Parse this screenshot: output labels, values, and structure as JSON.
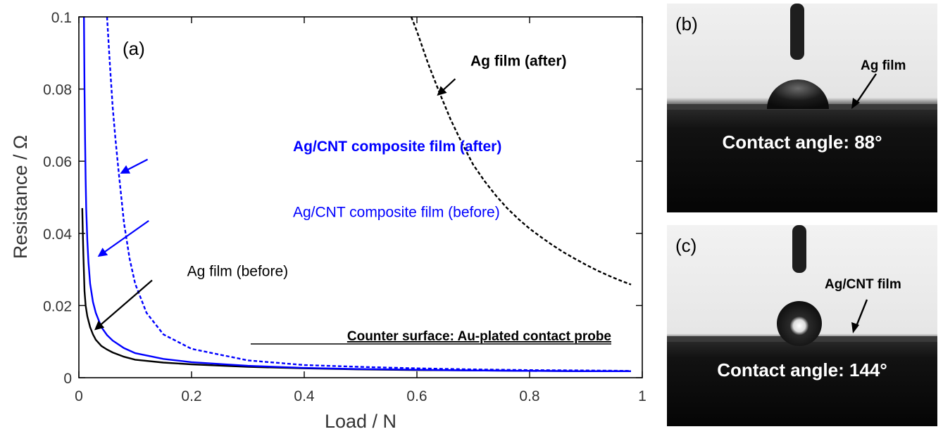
{
  "chart_data": {
    "type": "line",
    "panel_label": "(a)",
    "xlabel": "Load / N",
    "ylabel": "Resistance / Ω",
    "xlim": [
      0,
      1
    ],
    "ylim": [
      0,
      0.1
    ],
    "xticks": [
      0,
      0.2,
      0.4,
      0.6,
      0.8,
      1
    ],
    "xtick_labels": [
      "0",
      "0.2",
      "0.4",
      "0.6",
      "0.8",
      "1"
    ],
    "yticks": [
      0,
      0.02,
      0.04,
      0.06,
      0.08,
      0.1
    ],
    "ytick_labels": [
      "0",
      "0.02",
      "0.04",
      "0.06",
      "0.08",
      "0.1"
    ],
    "grid": false,
    "annotation": "Counter surface: Au-plated contact probe",
    "series": [
      {
        "name": "Ag film (before)",
        "color": "#000000",
        "dash": "solid",
        "x": [
          0.006,
          0.007,
          0.008,
          0.01,
          0.012,
          0.015,
          0.02,
          0.025,
          0.03,
          0.04,
          0.05,
          0.06,
          0.08,
          0.1,
          0.15,
          0.2,
          0.3,
          0.4,
          0.5,
          0.6,
          0.7,
          0.8,
          0.9,
          0.98
        ],
        "y": [
          0.047,
          0.04,
          0.034,
          0.024,
          0.02,
          0.017,
          0.014,
          0.012,
          0.0105,
          0.0088,
          0.0078,
          0.007,
          0.0058,
          0.005,
          0.0042,
          0.0037,
          0.003,
          0.0026,
          0.0023,
          0.0021,
          0.002,
          0.0019,
          0.0018,
          0.0018
        ]
      },
      {
        "name": "Ag/CNT composite film (before)",
        "color": "#0000ff",
        "dash": "solid",
        "x": [
          0.009,
          0.01,
          0.011,
          0.012,
          0.013,
          0.015,
          0.017,
          0.02,
          0.025,
          0.03,
          0.04,
          0.05,
          0.06,
          0.08,
          0.1,
          0.15,
          0.2,
          0.3,
          0.4,
          0.5,
          0.6,
          0.7,
          0.8,
          0.9,
          0.98
        ],
        "y": [
          0.1,
          0.08,
          0.066,
          0.055,
          0.047,
          0.038,
          0.032,
          0.026,
          0.021,
          0.018,
          0.014,
          0.0118,
          0.0103,
          0.0082,
          0.0068,
          0.0052,
          0.0043,
          0.0033,
          0.0027,
          0.0024,
          0.0022,
          0.002,
          0.0019,
          0.0018,
          0.0018
        ]
      },
      {
        "name": "Ag/CNT composite film (after)",
        "color": "#0000ff",
        "dash": "dashed",
        "x": [
          0.05,
          0.055,
          0.06,
          0.065,
          0.07,
          0.08,
          0.09,
          0.1,
          0.12,
          0.15,
          0.2,
          0.3,
          0.4,
          0.5,
          0.6,
          0.7,
          0.8,
          0.9,
          0.98
        ],
        "y": [
          0.1,
          0.087,
          0.075,
          0.066,
          0.058,
          0.043,
          0.033,
          0.026,
          0.018,
          0.012,
          0.008,
          0.0048,
          0.0035,
          0.003,
          0.0026,
          0.0023,
          0.0021,
          0.002,
          0.0019
        ]
      },
      {
        "name": "Ag film (after)",
        "color": "#000000",
        "dash": "dashed",
        "x": [
          0.59,
          0.6,
          0.62,
          0.64,
          0.66,
          0.68,
          0.7,
          0.72,
          0.74,
          0.76,
          0.78,
          0.8,
          0.82,
          0.84,
          0.86,
          0.88,
          0.9,
          0.92,
          0.94,
          0.96,
          0.98
        ],
        "y": [
          0.1,
          0.096,
          0.087,
          0.079,
          0.0715,
          0.065,
          0.059,
          0.0545,
          0.0505,
          0.047,
          0.044,
          0.0413,
          0.039,
          0.0368,
          0.0348,
          0.033,
          0.0313,
          0.0297,
          0.0283,
          0.027,
          0.0258
        ]
      }
    ],
    "labels": [
      {
        "text": "Ag film (after)",
        "color": "#000000",
        "bold": true,
        "x": 0.695,
        "y": 0.0865,
        "arrow_from": [
          0.668,
          0.0828
        ],
        "arrow_to": [
          0.638,
          0.0785
        ]
      },
      {
        "text": "Ag/CNT composite film (after)",
        "color": "#0000ff",
        "bold": true,
        "x": 0.38,
        "y": 0.0628,
        "arrow_from": [
          0.122,
          0.0605
        ],
        "arrow_to": [
          0.076,
          0.0568
        ]
      },
      {
        "text": "Ag/CNT composite film (before)",
        "color": "#0000ff",
        "bold": false,
        "x": 0.38,
        "y": 0.0445,
        "arrow_from": [
          0.124,
          0.0435
        ],
        "arrow_to": [
          0.036,
          0.0338
        ]
      },
      {
        "text": "Ag film (before)",
        "color": "#000000",
        "bold": false,
        "x": 0.192,
        "y": 0.0282,
        "arrow_from": [
          0.13,
          0.027
        ],
        "arrow_to": [
          0.03,
          0.0135
        ]
      }
    ]
  },
  "photos": [
    {
      "panel_label": "(b)",
      "film_label": "Ag film",
      "contact_angle_text": "Contact angle: 88°"
    },
    {
      "panel_label": "(c)",
      "film_label": "Ag/CNT film",
      "contact_angle_text": "Contact angle: 144°"
    }
  ]
}
